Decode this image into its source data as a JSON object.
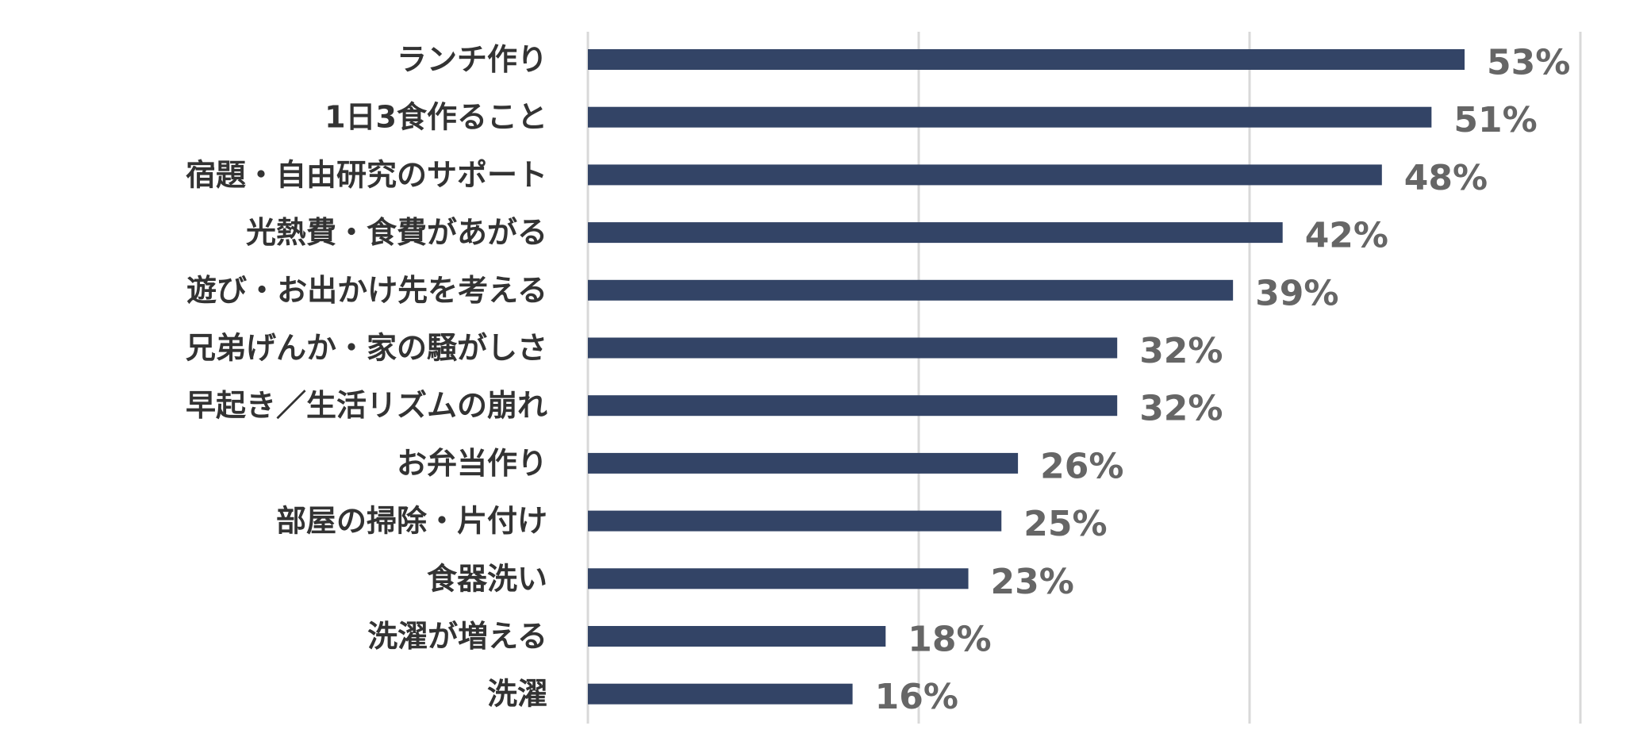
{
  "chart_data": {
    "type": "bar",
    "orientation": "horizontal",
    "categories": [
      "ランチ作り",
      "1日3食作ること",
      "宿題・自由研究のサポート",
      "光熱費・食費があがる",
      "遊び・お出かけ先を考える",
      "兄弟げんか・家の騒がしさ",
      "早起き／生活リズムの崩れ",
      "お弁当作り",
      "部屋の掃除・片付け",
      "食器洗い",
      "洗濯が増える",
      "洗濯"
    ],
    "values": [
      53,
      51,
      48,
      42,
      39,
      32,
      32,
      26,
      25,
      23,
      18,
      16
    ],
    "value_suffix": "%",
    "xlim": [
      0,
      60
    ],
    "gridline_values": [
      0,
      20,
      40,
      60
    ],
    "grid": true,
    "bar_color": "#334466",
    "label_color": "#333333",
    "value_label_color": "#666666",
    "gridline_color": "#d9d9d9"
  }
}
